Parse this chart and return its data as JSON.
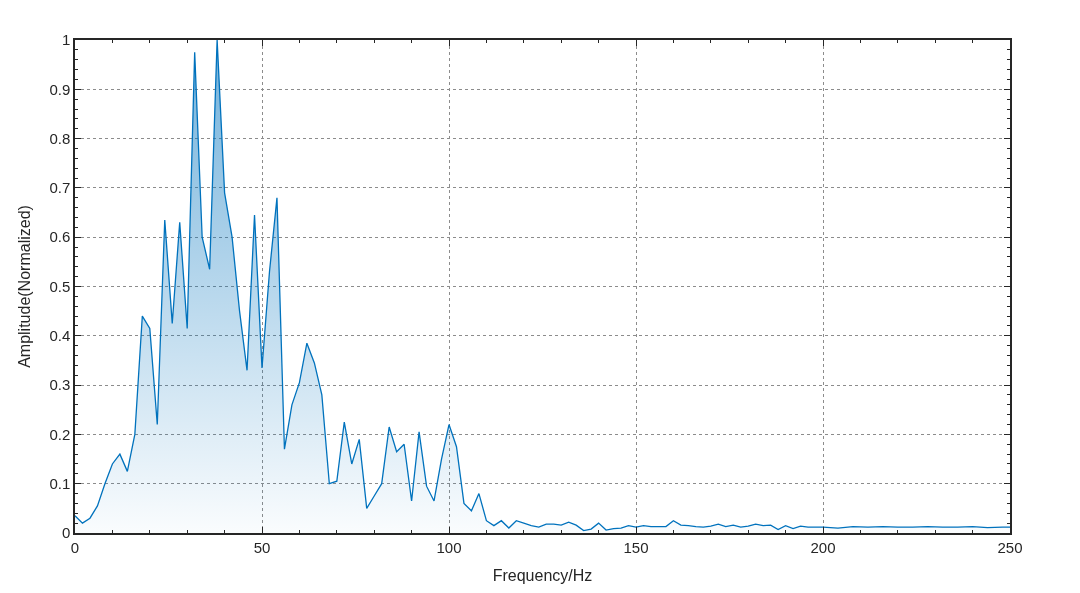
{
  "chart_data": {
    "type": "area",
    "xlabel": "Frequency/Hz",
    "ylabel": "Amplitude(Normalized)",
    "x": [
      0,
      2,
      4,
      6,
      8,
      10,
      12,
      14,
      16,
      18,
      20,
      22,
      24,
      26,
      28,
      30,
      32,
      34,
      36,
      38,
      40,
      42,
      44,
      46,
      48,
      50,
      52,
      54,
      56,
      58,
      60,
      62,
      64,
      66,
      68,
      70,
      72,
      74,
      76,
      78,
      80,
      82,
      84,
      86,
      88,
      90,
      92,
      94,
      96,
      98,
      100,
      102,
      104,
      106,
      108,
      110,
      112,
      114,
      116,
      118,
      120,
      122,
      124,
      126,
      128,
      130,
      132,
      134,
      136,
      138,
      140,
      142,
      144,
      146,
      148,
      150,
      152,
      154,
      156,
      158,
      160,
      162,
      164,
      166,
      168,
      170,
      172,
      174,
      176,
      178,
      180,
      182,
      184,
      186,
      188,
      190,
      192,
      194,
      196,
      198,
      200,
      204,
      208,
      212,
      216,
      220,
      224,
      228,
      232,
      236,
      240,
      244,
      248,
      250
    ],
    "series": [
      {
        "color": "#0072bd",
        "values": [
          0.035,
          0.02,
          0.03,
          0.055,
          0.1,
          0.14,
          0.16,
          0.125,
          0.2,
          0.44,
          0.415,
          0.22,
          0.635,
          0.425,
          0.63,
          0.415,
          0.975,
          0.6,
          0.535,
          1.0,
          0.69,
          0.6,
          0.45,
          0.33,
          0.645,
          0.335,
          0.53,
          0.68,
          0.17,
          0.26,
          0.305,
          0.385,
          0.345,
          0.28,
          0.1,
          0.105,
          0.225,
          0.14,
          0.19,
          0.05,
          0.075,
          0.1,
          0.215,
          0.165,
          0.18,
          0.065,
          0.205,
          0.095,
          0.065,
          0.15,
          0.22,
          0.175,
          0.06,
          0.045,
          0.08,
          0.025,
          0.015,
          0.025,
          0.01,
          0.025,
          0.02,
          0.015,
          0.012,
          0.018,
          0.018,
          0.016,
          0.022,
          0.016,
          0.005,
          0.008,
          0.02,
          0.006,
          0.009,
          0.01,
          0.015,
          0.012,
          0.015,
          0.013,
          0.013,
          0.013,
          0.025,
          0.016,
          0.015,
          0.013,
          0.012,
          0.014,
          0.018,
          0.013,
          0.016,
          0.012,
          0.014,
          0.018,
          0.015,
          0.016,
          0.007,
          0.015,
          0.009,
          0.014,
          0.012,
          0.012,
          0.012,
          0.01,
          0.013,
          0.012,
          0.013,
          0.012,
          0.012,
          0.013,
          0.012,
          0.012,
          0.013,
          0.011,
          0.012,
          0.012
        ]
      }
    ],
    "xlim": [
      0,
      250
    ],
    "xticks": [
      0,
      50,
      100,
      150,
      200,
      250
    ],
    "ylim": [
      0,
      1
    ],
    "yticks": [
      0,
      0.1,
      0.2,
      0.3,
      0.4,
      0.5,
      0.6,
      0.7,
      0.8,
      0.9,
      1
    ],
    "grid": true
  }
}
